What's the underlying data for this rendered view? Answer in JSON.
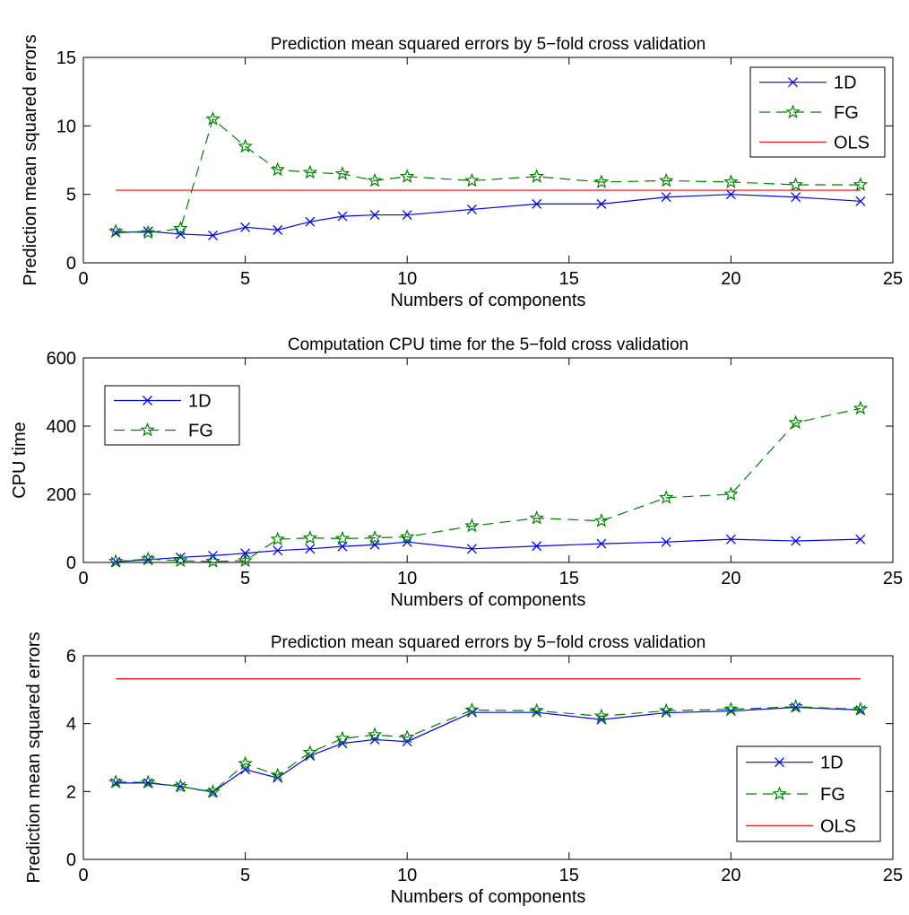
{
  "chart_data": [
    {
      "type": "line",
      "title": "Prediction mean squared errors by 5−fold cross validation",
      "xlabel": "Numbers of components",
      "ylabel": "Prediction mean squared errors",
      "xlim": [
        0,
        25
      ],
      "ylim": [
        0,
        15
      ],
      "xticks": [
        0,
        5,
        10,
        15,
        20,
        25
      ],
      "yticks": [
        0,
        5,
        10,
        15
      ],
      "legend_position": "top-right",
      "x": [
        1,
        2,
        3,
        4,
        5,
        6,
        7,
        8,
        9,
        10,
        12,
        14,
        16,
        18,
        20,
        22,
        24
      ],
      "series": [
        {
          "name": "1D",
          "color": "#0000ff",
          "style": "solid",
          "marker": "x",
          "values": [
            2.2,
            2.3,
            2.1,
            2.0,
            2.6,
            2.4,
            3.0,
            3.4,
            3.5,
            3.5,
            3.9,
            4.3,
            4.3,
            4.8,
            5.0,
            4.8,
            4.5
          ]
        },
        {
          "name": "FG",
          "color": "#008000",
          "style": "dashed",
          "marker": "star",
          "values": [
            2.3,
            2.2,
            2.5,
            10.5,
            8.5,
            6.8,
            6.6,
            6.5,
            6.0,
            6.3,
            6.0,
            6.3,
            5.9,
            6.0,
            5.9,
            5.7,
            5.7
          ]
        },
        {
          "name": "OLS",
          "color": "#ff0000",
          "style": "solid",
          "marker": "none",
          "values": [
            5.3,
            5.3,
            5.3,
            5.3,
            5.3,
            5.3,
            5.3,
            5.3,
            5.3,
            5.3,
            5.3,
            5.3,
            5.3,
            5.3,
            5.3,
            5.3,
            5.3
          ]
        }
      ]
    },
    {
      "type": "line",
      "title": "Computation CPU time for the 5−fold cross validation",
      "xlabel": "Numbers of components",
      "ylabel": "CPU time",
      "xlim": [
        0,
        25
      ],
      "ylim": [
        0,
        600
      ],
      "xticks": [
        0,
        5,
        10,
        15,
        20,
        25
      ],
      "yticks": [
        0,
        200,
        400,
        600
      ],
      "legend_position": "top-left",
      "x": [
        1,
        2,
        3,
        4,
        5,
        6,
        7,
        8,
        9,
        10,
        12,
        14,
        16,
        18,
        20,
        22,
        24
      ],
      "series": [
        {
          "name": "1D",
          "color": "#0000ff",
          "style": "solid",
          "marker": "x",
          "values": [
            2,
            8,
            15,
            20,
            27,
            35,
            40,
            47,
            52,
            60,
            40,
            48,
            55,
            60,
            68,
            63,
            68
          ]
        },
        {
          "name": "FG",
          "color": "#008000",
          "style": "dashed",
          "marker": "star",
          "values": [
            3,
            10,
            5,
            3,
            5,
            68,
            72,
            70,
            72,
            75,
            107,
            130,
            122,
            190,
            200,
            410,
            452
          ]
        }
      ]
    },
    {
      "type": "line",
      "title": "Prediction mean squared errors by 5−fold cross validation",
      "xlabel": "Numbers of components",
      "ylabel": "Prediction mean squared errors",
      "xlim": [
        0,
        25
      ],
      "ylim": [
        0,
        6
      ],
      "xticks": [
        0,
        5,
        10,
        15,
        20,
        25
      ],
      "yticks": [
        0,
        2,
        4,
        6
      ],
      "legend_position": "bottom-right",
      "x": [
        1,
        2,
        3,
        4,
        5,
        6,
        7,
        8,
        9,
        10,
        12,
        14,
        16,
        18,
        20,
        22,
        24
      ],
      "series": [
        {
          "name": "1D",
          "color": "#0000ff",
          "style": "solid",
          "marker": "x",
          "values": [
            2.25,
            2.25,
            2.15,
            1.98,
            2.65,
            2.4,
            3.05,
            3.42,
            3.53,
            3.47,
            4.33,
            4.33,
            4.12,
            4.32,
            4.37,
            4.48,
            4.4
          ]
        },
        {
          "name": "FG",
          "color": "#008000",
          "style": "dashed",
          "marker": "star",
          "values": [
            2.28,
            2.27,
            2.15,
            1.99,
            2.82,
            2.48,
            3.15,
            3.56,
            3.67,
            3.6,
            4.4,
            4.38,
            4.22,
            4.38,
            4.42,
            4.5,
            4.42
          ]
        },
        {
          "name": "OLS",
          "color": "#ff0000",
          "style": "solid",
          "marker": "none",
          "values": [
            5.32,
            5.32,
            5.32,
            5.32,
            5.32,
            5.32,
            5.32,
            5.32,
            5.32,
            5.32,
            5.32,
            5.32,
            5.32,
            5.32,
            5.32,
            5.32,
            5.32
          ]
        }
      ]
    }
  ]
}
